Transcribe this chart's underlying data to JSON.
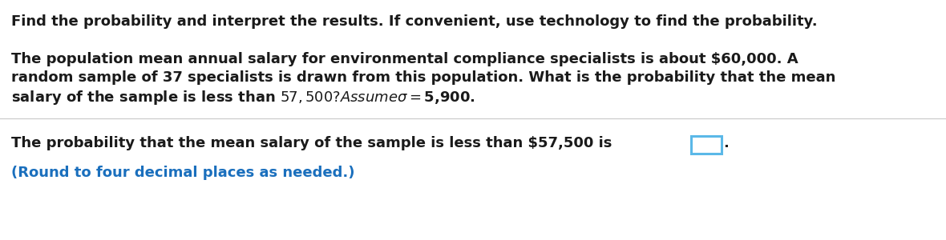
{
  "line1": "Find the probability and interpret the results. If convenient, use technology to find the probability.",
  "para1_line1": "The population mean annual salary for environmental compliance specialists is about $60,000. A",
  "para1_line2": "random sample of 37 specialists is drawn from this population. What is the probability that the mean",
  "para1_line3": "salary of the sample is less than $57,500? Assume σ = $5,900.",
  "para2_line1_before": "The probability that the mean salary of the sample is less than $57,500 is ",
  "para2_line1_after": ".",
  "para2_line2": "(Round to four decimal places as needed.)",
  "bg_color": "#ffffff",
  "text_color": "#1a1a1a",
  "blue_color": "#1a6fbd",
  "box_border_color": "#5bb8e8",
  "font_size": 13.0,
  "separator_color": "#cccccc"
}
